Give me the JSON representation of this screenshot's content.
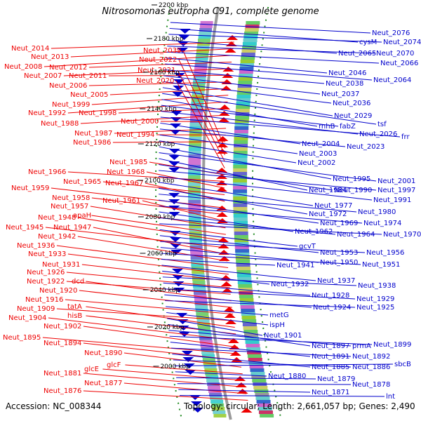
{
  "title": "Nitrosomonas eutropha C91, complete genome",
  "accession": "Accession: NC_008344",
  "topology": "Topology: circular; Length: 2,661,057 bp; Genes: 2,490",
  "colors": {
    "left_strand": "#ee0000",
    "right_strand": "#0000cc",
    "backbone": "#9a9a9a",
    "tick_dots": "#228b22"
  },
  "ticks": [
    "2200 kbp",
    "2180 kbp",
    "2160 kbp",
    "2140 kbp",
    "2120 kbp",
    "2100 kbp",
    "2080 kbp",
    "2060 kbp",
    "2040 kbp",
    "2020 kbp",
    "2000 kbp"
  ],
  "left_labels": [
    "Neut_2014",
    "Neut_2013",
    "Neut_2008",
    "Neut_2012",
    "Neut_2007",
    "Neut_2011",
    "Neut_2006",
    "Neut_2005",
    "Neut_1999",
    "Neut_1992",
    "Neut_1998",
    "Neut_1988",
    "Neut_2000",
    "Neut_1987",
    "Neut_1994",
    "Neut_1986",
    "Neut_2039",
    "Neut_2022",
    "Neut_2021",
    "Neut_2020",
    "Neut_1985",
    "Neut_1966",
    "Neut_1968",
    "Neut_1965",
    "Neut_1967",
    "Neut_1959",
    "Neut_1958",
    "Neut_1961",
    "Neut_1957",
    "apaH",
    "Neut_1948",
    "Neut_1945",
    "Neut_1947",
    "Neut_1942",
    "Neut_1936",
    "Neut_1933",
    "Neut_1931",
    "Neut_1926",
    "Neut_1922",
    "dcd",
    "Neut_1920",
    "Neut_1916",
    "Neut_1909",
    "tatA",
    "hisB",
    "Neut_1904",
    "Neut_1902",
    "Neut_1895",
    "Neut_1894",
    "Neut_1890",
    "glcF",
    "glcE",
    "Neut_1881",
    "Neut_1877",
    "Neut_1876"
  ],
  "right_labels": [
    "Neut_2076",
    "cysM",
    "Neut_2074",
    "Neut_2065",
    "Neut_2070",
    "Neut_2066",
    "Neut_2046",
    "Neut_2064",
    "Neut_2038",
    "Neut_2037",
    "Neut_2036",
    "Neut_2029",
    "tsf",
    "rnhB",
    "fabZ",
    "Neut_2026",
    "frr",
    "Neut_2004",
    "Neut_2023",
    "Neut_2003",
    "Neut_2002",
    "Neut_1995",
    "Neut_2001",
    "Neut_1984",
    "Neut_1990",
    "Neut_1997",
    "Neut_1991",
    "Neut_1977",
    "Neut_1972",
    "Neut_1980",
    "Neut_1969",
    "Neut_1974",
    "Neut_1962",
    "Neut_1964",
    "Neut_1970",
    "gcvT",
    "Neut_1953",
    "Neut_1956",
    "Neut_1950",
    "Neut_1951",
    "Neut_1941",
    "Neut_1937",
    "Neut_1932",
    "Neut_1938",
    "Neut_1928",
    "Neut_1929",
    "Neut_1924",
    "Neut_1925",
    "metG",
    "ispH",
    "Neut_1901",
    "Neut_1897",
    "prmA",
    "Neut_1899",
    "Neut_1891",
    "Neut_1892",
    "Neut_1885",
    "Neut_1886",
    "sbcB",
    "Neut_1880",
    "Neut_1879",
    "Neut_1878",
    "Neut_1871",
    "lnt"
  ]
}
